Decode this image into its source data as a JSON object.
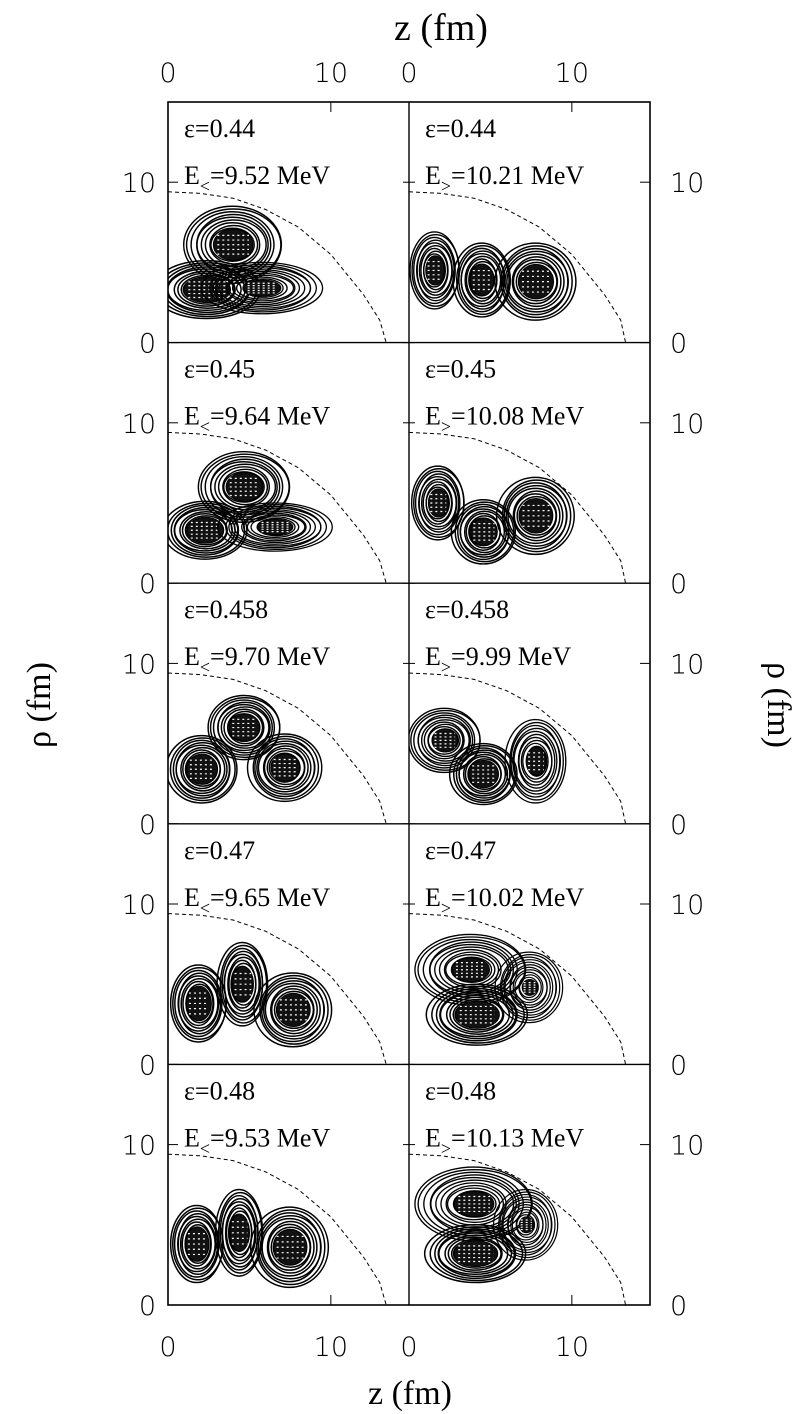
{
  "chart_data": {
    "type": "contour",
    "xlabel": "z (fm)",
    "ylabel": "ρ (fm)",
    "xlim": [
      0,
      14.8
    ],
    "ylim": [
      0,
      15
    ],
    "x_ticks": [
      "0",
      "10"
    ],
    "y_ticks": [
      "0",
      "10"
    ],
    "grid": false,
    "columns": [
      "left",
      "right"
    ],
    "panels": [
      {
        "row": 0,
        "left": {
          "eps": "ε=0.44",
          "energy_label": "E",
          "energy_sub": "<",
          "energy_value": "=9.52 MeV",
          "blobs": [
            {
              "z": 4.0,
              "r": 6.1,
              "rz": 3.0,
              "rr": 2.4,
              "s": 0.9
            },
            {
              "z": 2.4,
              "r": 3.3,
              "rz": 3.2,
              "rr": 1.8,
              "s": 1
            },
            {
              "z": 5.8,
              "r": 3.4,
              "rz": 3.6,
              "rr": 1.6,
              "s": 0.7
            }
          ]
        },
        "right": {
          "eps": "ε=0.44",
          "energy_label": "E",
          "energy_sub": ">",
          "energy_value": "=10.21 MeV",
          "blobs": [
            {
              "z": 1.6,
              "r": 4.5,
              "rz": 1.5,
              "rr": 2.4,
              "s": 0.85
            },
            {
              "z": 4.5,
              "r": 3.9,
              "rz": 1.7,
              "rr": 2.3,
              "s": 0.95
            },
            {
              "z": 7.8,
              "r": 3.8,
              "rz": 2.4,
              "rr": 2.4,
              "s": 1
            }
          ]
        }
      },
      {
        "row": 1,
        "left": {
          "eps": "ε=0.45",
          "energy_label": "E",
          "energy_sub": "<",
          "energy_value": "=9.64 MeV",
          "blobs": [
            {
              "z": 4.7,
              "r": 6.0,
              "rz": 2.8,
              "rr": 2.2,
              "s": 0.9
            },
            {
              "z": 2.3,
              "r": 3.3,
              "rz": 2.5,
              "rr": 1.8,
              "s": 1
            },
            {
              "z": 6.6,
              "r": 3.5,
              "rz": 3.4,
              "rr": 1.5,
              "s": 0.7
            }
          ]
        },
        "right": {
          "eps": "ε=0.45",
          "energy_label": "E",
          "energy_sub": ">",
          "energy_value": "=10.08 MeV",
          "blobs": [
            {
              "z": 1.8,
              "r": 5.0,
              "rz": 1.6,
              "rr": 2.3,
              "s": 0.85
            },
            {
              "z": 4.6,
              "r": 3.2,
              "rz": 1.9,
              "rr": 2.0,
              "s": 0.95
            },
            {
              "z": 7.8,
              "r": 4.2,
              "rz": 2.3,
              "rr": 2.4,
              "s": 1
            }
          ]
        }
      },
      {
        "row": 2,
        "left": {
          "eps": "ε=0.458",
          "energy_label": "E",
          "energy_sub": "<",
          "energy_value": "=9.70 MeV",
          "blobs": [
            {
              "z": 4.7,
              "r": 6.0,
              "rz": 2.2,
              "rr": 2.0,
              "s": 0.95
            },
            {
              "z": 2.1,
              "r": 3.4,
              "rz": 2.1,
              "rr": 2.1,
              "s": 1
            },
            {
              "z": 7.2,
              "r": 3.5,
              "rz": 2.2,
              "rr": 2.1,
              "s": 0.9
            }
          ]
        },
        "right": {
          "eps": "ε=0.458",
          "energy_label": "E",
          "energy_sub": ">",
          "energy_value": "=9.99 MeV",
          "blobs": [
            {
              "z": 2.2,
              "r": 5.2,
              "rz": 2.2,
              "rr": 2.0,
              "s": 0.8
            },
            {
              "z": 4.6,
              "r": 3.1,
              "rz": 2.0,
              "rr": 1.9,
              "s": 1
            },
            {
              "z": 7.8,
              "r": 3.9,
              "rz": 1.8,
              "rr": 2.6,
              "s": 0.75
            }
          ]
        }
      },
      {
        "row": 3,
        "left": {
          "eps": "ε=0.47",
          "energy_label": "E",
          "energy_sub": "<",
          "energy_value": "=9.65 MeV",
          "blobs": [
            {
              "z": 1.9,
              "r": 3.8,
              "rz": 1.7,
              "rr": 2.4,
              "s": 1
            },
            {
              "z": 4.6,
              "r": 5.0,
              "rz": 1.5,
              "rr": 2.6,
              "s": 0.95
            },
            {
              "z": 7.7,
              "r": 3.4,
              "rz": 2.3,
              "rr": 2.3,
              "s": 1
            }
          ]
        },
        "right": {
          "eps": "ε=0.47",
          "energy_label": "E",
          "energy_sub": ">",
          "energy_value": "=10.02 MeV",
          "blobs": [
            {
              "z": 3.8,
              "r": 5.9,
              "rz": 3.4,
              "rr": 2.2,
              "s": 0.75
            },
            {
              "z": 4.2,
              "r": 3.1,
              "rz": 3.0,
              "rr": 1.9,
              "s": 1
            },
            {
              "z": 7.4,
              "r": 4.8,
              "rz": 2.0,
              "rr": 2.2,
              "s": 0.5
            }
          ]
        }
      },
      {
        "row": 4,
        "left": {
          "eps": "ε=0.48",
          "energy_label": "E",
          "energy_sub": "<",
          "energy_value": "=9.53 MeV",
          "blobs": [
            {
              "z": 1.8,
              "r": 3.8,
              "rz": 1.6,
              "rr": 2.4,
              "s": 1
            },
            {
              "z": 4.4,
              "r": 4.5,
              "rz": 1.4,
              "rr": 2.7,
              "s": 0.95
            },
            {
              "z": 7.5,
              "r": 3.6,
              "rz": 2.3,
              "rr": 2.5,
              "s": 1
            }
          ]
        },
        "right": {
          "eps": "ε=0.48",
          "energy_label": "E",
          "energy_sub": ">",
          "energy_value": "=10.13 MeV",
          "blobs": [
            {
              "z": 4.0,
              "r": 6.3,
              "rz": 3.6,
              "rr": 2.3,
              "s": 0.75
            },
            {
              "z": 4.1,
              "r": 3.2,
              "rz": 3.0,
              "rr": 1.8,
              "s": 1
            },
            {
              "z": 7.2,
              "r": 5.0,
              "rz": 1.9,
              "rr": 2.2,
              "s": 0.5
            }
          ]
        }
      }
    ],
    "surface_curve": {
      "style": "dashed",
      "left": {
        "rho0": 9.4,
        "z_end": 13.4,
        "samples": [
          {
            "z": 0,
            "r": 9.4
          },
          {
            "z": 2,
            "r": 9.3
          },
          {
            "z": 4,
            "r": 9.0
          },
          {
            "z": 6,
            "r": 8.3
          },
          {
            "z": 8,
            "r": 7.2
          },
          {
            "z": 10,
            "r": 5.5
          },
          {
            "z": 12,
            "r": 3.0
          },
          {
            "z": 13,
            "r": 1.4
          },
          {
            "z": 13.4,
            "r": 0
          }
        ]
      },
      "right": {
        "rho0": 9.4,
        "z_end": 13.3,
        "samples": [
          {
            "z": 0,
            "r": 9.4
          },
          {
            "z": 2,
            "r": 9.3
          },
          {
            "z": 4,
            "r": 9.0
          },
          {
            "z": 6,
            "r": 8.3
          },
          {
            "z": 8,
            "r": 7.2
          },
          {
            "z": 10,
            "r": 5.5
          },
          {
            "z": 12,
            "r": 3.0
          },
          {
            "z": 13,
            "r": 1.4
          },
          {
            "z": 13.3,
            "r": 0
          }
        ]
      }
    }
  }
}
